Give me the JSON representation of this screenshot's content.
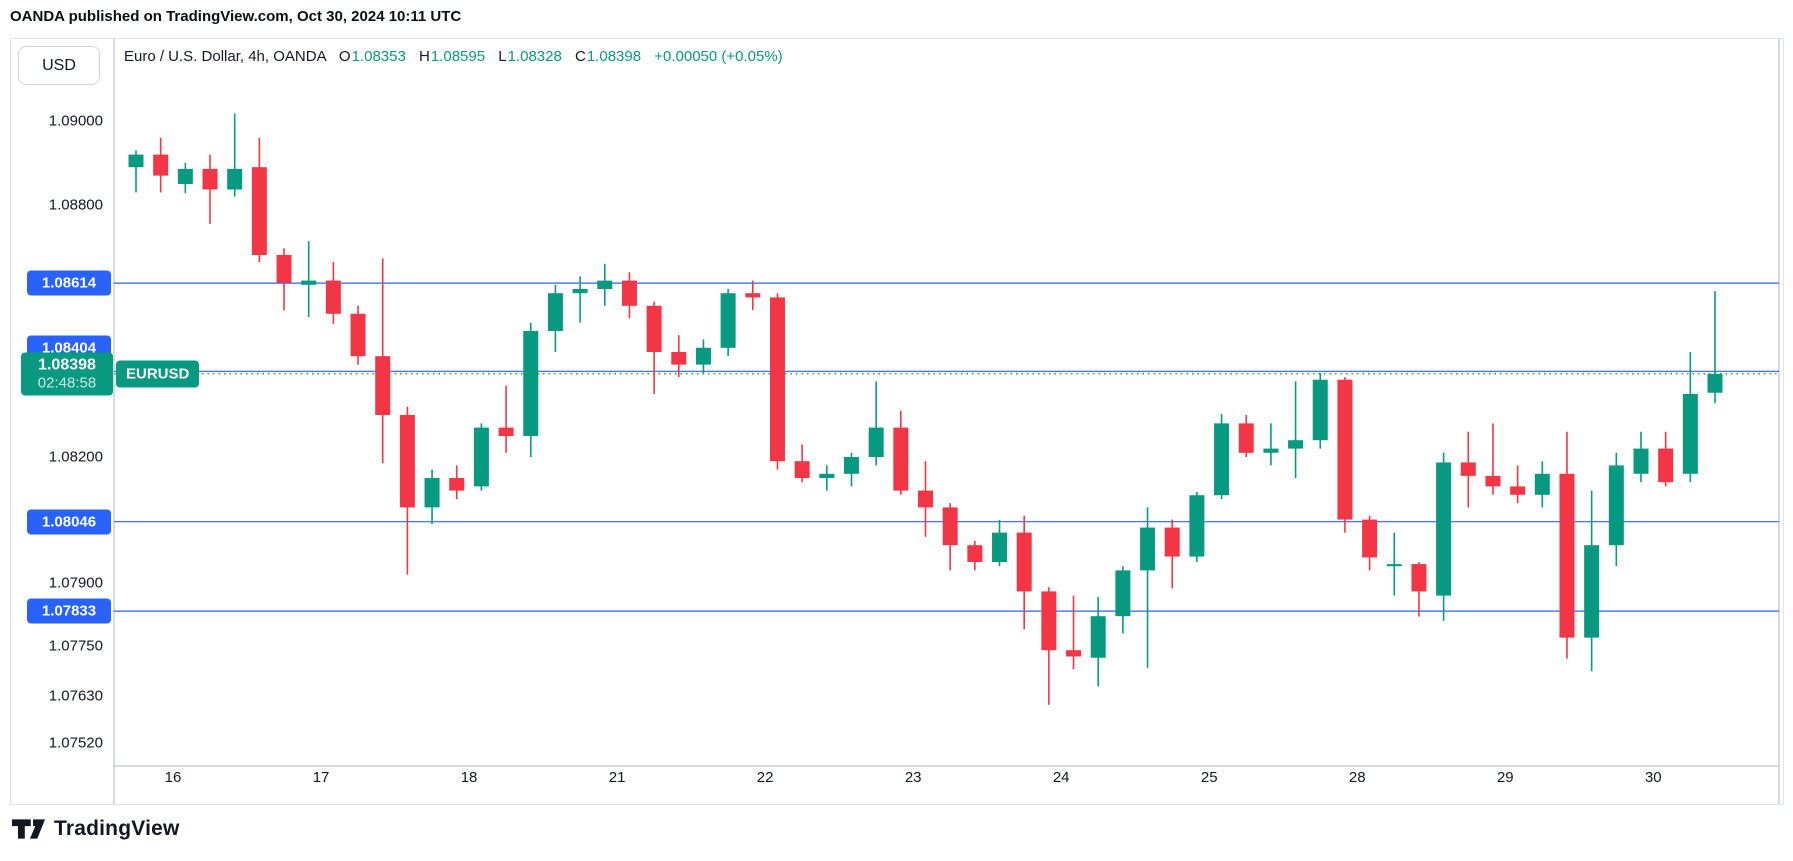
{
  "header": {
    "attribution": "OANDA published on TradingView.com, Oct 30, 2024 10:11 UTC"
  },
  "toolbar": {
    "currency_button": "USD"
  },
  "legend": {
    "symbol": "Euro / U.S. Dollar, 4h, OANDA",
    "open_label": "O",
    "open": "1.08353",
    "high_label": "H",
    "high": "1.08595",
    "low_label": "L",
    "low": "1.08328",
    "close_label": "C",
    "close": "1.08398",
    "change": "+0.00050 (+0.05%)"
  },
  "current": {
    "price_label": "1.08398",
    "price": 1.08398,
    "countdown": "02:48:58",
    "symbol_badge": "EURUSD"
  },
  "footer": {
    "brand": "TradingView"
  },
  "colors": {
    "up": "#089981",
    "down": "#F23645",
    "level_blue": "#2962FF",
    "text": "#131722",
    "card_border": "#E0E3EB",
    "axis_line": "#B2B5BE",
    "current_line": "#089981"
  },
  "chart_data": {
    "type": "candlestick",
    "title": "Euro / U.S. Dollar, 4h, OANDA",
    "symbol": "EURUSD",
    "timeframe": "4h",
    "exchange": "OANDA",
    "grid": false,
    "y_axis": {
      "side": "left",
      "range_top": 1.09076,
      "range_bottom": 1.07467,
      "ticks": [
        {
          "label": "1.09000",
          "price": 1.09
        },
        {
          "label": "1.08800",
          "price": 1.088
        },
        {
          "label": "1.08200",
          "price": 1.082
        },
        {
          "label": "1.07900",
          "price": 1.079
        },
        {
          "label": "1.07750",
          "price": 1.0775
        },
        {
          "label": "1.07630",
          "price": 1.0763
        },
        {
          "label": "1.07520",
          "price": 1.0752
        }
      ]
    },
    "levels": [
      {
        "label": "1.08614",
        "price": 1.08614,
        "badge_dy": 0
      },
      {
        "label": "1.08404",
        "price": 1.08404,
        "badge_dy": -23
      },
      {
        "label": "1.08046",
        "price": 1.08046,
        "badge_dy": 0
      },
      {
        "label": "1.07833",
        "price": 1.07833,
        "badge_dy": 0
      }
    ],
    "x_axis": {
      "labels": [
        {
          "label": "16",
          "candle_index": 2
        },
        {
          "label": "17",
          "candle_index": 8
        },
        {
          "label": "18",
          "candle_index": 14
        },
        {
          "label": "21",
          "candle_index": 20
        },
        {
          "label": "22",
          "candle_index": 26
        },
        {
          "label": "23",
          "candle_index": 32
        },
        {
          "label": "24",
          "candle_index": 38
        },
        {
          "label": "25",
          "candle_index": 44
        },
        {
          "label": "28",
          "candle_index": 50
        },
        {
          "label": "29",
          "candle_index": 56
        },
        {
          "label": "30",
          "candle_index": 62
        }
      ]
    },
    "candles_format": [
      "open",
      "high",
      "low",
      "close"
    ],
    "candles": [
      [
        1.0889,
        1.0893,
        1.0883,
        1.0892
      ],
      [
        1.0892,
        1.0896,
        1.0883,
        1.0887
      ],
      [
        1.0885,
        1.089,
        1.08828,
        1.08886
      ],
      [
        1.08886,
        1.0892,
        1.08755,
        1.08837
      ],
      [
        1.08837,
        1.09018,
        1.0882,
        1.08886
      ],
      [
        1.0889,
        1.0896,
        1.08664,
        1.08681
      ],
      [
        1.08681,
        1.08697,
        1.08549,
        1.08615
      ],
      [
        1.0861,
        1.08714,
        1.08533,
        1.0862
      ],
      [
        1.0862,
        1.08664,
        1.08517,
        1.08541
      ],
      [
        1.08541,
        1.0856,
        1.0842,
        1.0844
      ],
      [
        1.0844,
        1.08673,
        1.08185,
        1.083
      ],
      [
        1.083,
        1.0832,
        1.0792,
        1.0808
      ],
      [
        1.0808,
        1.0817,
        1.0804,
        1.0815
      ],
      [
        1.0815,
        1.0818,
        1.081,
        1.0812
      ],
      [
        1.0813,
        1.0828,
        1.0812,
        1.0827
      ],
      [
        1.0827,
        1.0837,
        1.0821,
        1.0825
      ],
      [
        1.0825,
        1.0852,
        1.082,
        1.085
      ],
      [
        1.085,
        1.0861,
        1.0845,
        1.0859
      ],
      [
        1.0859,
        1.0863,
        1.0852,
        1.086
      ],
      [
        1.086,
        1.0866,
        1.0856,
        1.0862
      ],
      [
        1.0862,
        1.0864,
        1.0853,
        1.0856
      ],
      [
        1.0856,
        1.0857,
        1.0835,
        1.0845
      ],
      [
        1.0845,
        1.0849,
        1.0839,
        1.0842
      ],
      [
        1.0842,
        1.0848,
        1.084,
        1.0846
      ],
      [
        1.0846,
        1.086,
        1.0844,
        1.0859
      ],
      [
        1.0859,
        1.0862,
        1.0855,
        1.0858
      ],
      [
        1.0858,
        1.0859,
        1.0817,
        1.0819
      ],
      [
        1.0819,
        1.0823,
        1.0814,
        1.0815
      ],
      [
        1.0815,
        1.0818,
        1.0812,
        1.0816
      ],
      [
        1.0816,
        1.0821,
        1.0813,
        1.082
      ],
      [
        1.082,
        1.0838,
        1.0818,
        1.0827
      ],
      [
        1.0827,
        1.0831,
        1.0811,
        1.0812
      ],
      [
        1.0812,
        1.0819,
        1.0801,
        1.0808
      ],
      [
        1.0808,
        1.0809,
        1.0793,
        1.0799
      ],
      [
        1.0799,
        1.08,
        1.0793,
        1.0795
      ],
      [
        1.0795,
        1.0805,
        1.0794,
        1.0802
      ],
      [
        1.0802,
        1.0806,
        1.0779,
        1.0788
      ],
      [
        1.0788,
        1.0789,
        1.0761,
        1.0774
      ],
      [
        1.0774,
        1.0787,
        1.07695,
        1.07725
      ],
      [
        1.07722,
        1.07867,
        1.07654,
        1.07821
      ],
      [
        1.07821,
        1.0794,
        1.0778,
        1.0793
      ],
      [
        1.0793,
        1.0808,
        1.07698,
        1.08032
      ],
      [
        1.08032,
        1.08051,
        1.07887,
        1.07963
      ],
      [
        1.07963,
        1.08117,
        1.0795,
        1.08109
      ],
      [
        1.08109,
        1.08302,
        1.081,
        1.0828
      ],
      [
        1.0828,
        1.083,
        1.082,
        1.0821
      ],
      [
        1.0821,
        1.0828,
        1.0818,
        1.0822
      ],
      [
        1.0822,
        1.0838,
        1.0815,
        1.0824
      ],
      [
        1.0824,
        1.084,
        1.0822,
        1.08384
      ],
      [
        1.08384,
        1.0839,
        1.0802,
        1.08051
      ],
      [
        1.08051,
        1.0806,
        1.0793,
        1.07961
      ],
      [
        1.0794,
        1.0802,
        1.0787,
        1.07945
      ],
      [
        1.07945,
        1.0795,
        1.0782,
        1.0788
      ],
      [
        1.0787,
        1.0821,
        1.0781,
        1.08187
      ],
      [
        1.08187,
        1.0826,
        1.0808,
        1.08155
      ],
      [
        1.08155,
        1.0828,
        1.0811,
        1.0813
      ],
      [
        1.0813,
        1.0818,
        1.0809,
        1.0811
      ],
      [
        1.0811,
        1.0819,
        1.0808,
        1.0816
      ],
      [
        1.0816,
        1.0826,
        1.0772,
        1.0777
      ],
      [
        1.0777,
        1.0812,
        1.0769,
        1.0799
      ],
      [
        1.0799,
        1.0821,
        1.0794,
        1.0818
      ],
      [
        1.0816,
        1.0826,
        1.0814,
        1.0822
      ],
      [
        1.0822,
        1.0826,
        1.0813,
        1.0814
      ],
      [
        1.0816,
        1.0845,
        1.0814,
        1.0835
      ],
      [
        1.08353,
        1.08595,
        1.08328,
        1.08398
      ]
    ]
  }
}
